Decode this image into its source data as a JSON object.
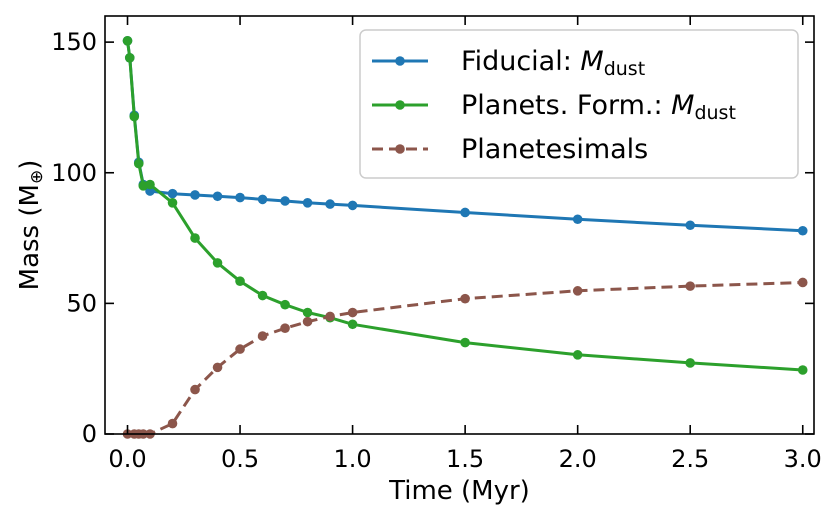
{
  "chart_data": {
    "type": "line",
    "xlabel": "Time (Myr)",
    "ylabel": "Mass (M",
    "ylabel_symbol": "⊕",
    "ylabel_close": ")",
    "xlim": [
      -0.1,
      3.05
    ],
    "ylim": [
      0,
      160
    ],
    "xticks": [
      0.0,
      0.5,
      1.0,
      1.5,
      2.0,
      2.5,
      3.0
    ],
    "xtick_labels": [
      "0.0",
      "0.5",
      "1.0",
      "1.5",
      "2.0",
      "2.5",
      "3.0"
    ],
    "yticks": [
      0,
      50,
      100,
      150
    ],
    "ytick_labels": [
      "0",
      "50",
      "100",
      "150"
    ],
    "grid": false,
    "legend_position": "top-right",
    "series": [
      {
        "name": "Fiducial: ",
        "name_math": "M",
        "name_sub": "dust",
        "color": "#1f77b4",
        "style": "solid",
        "x": [
          0.0,
          0.01,
          0.03,
          0.05,
          0.07,
          0.1,
          0.2,
          0.3,
          0.4,
          0.5,
          0.6,
          0.7,
          0.8,
          0.9,
          1.0,
          1.5,
          2.0,
          2.5,
          3.0
        ],
        "y": [
          150.5,
          144,
          122,
          104,
          95.5,
          93,
          92,
          91.5,
          91,
          90.5,
          89.8,
          89.2,
          88.5,
          88,
          87.5,
          84.8,
          82.2,
          79.9,
          77.8
        ]
      },
      {
        "name": "Planets. Form.: ",
        "name_math": "M",
        "name_sub": "dust",
        "color": "#2ca02c",
        "style": "solid",
        "x": [
          0.0,
          0.01,
          0.03,
          0.05,
          0.07,
          0.1,
          0.2,
          0.3,
          0.4,
          0.5,
          0.6,
          0.7,
          0.8,
          0.9,
          1.0,
          1.5,
          2.0,
          2.5,
          3.0
        ],
        "y": [
          150.5,
          144,
          121.5,
          103.5,
          95,
          95.5,
          88.5,
          75,
          65.5,
          58.5,
          53,
          49.5,
          46.5,
          44.5,
          42,
          35,
          30.3,
          27.2,
          24.5
        ]
      },
      {
        "name": "Planetesimals",
        "color": "#8c564b",
        "style": "dashed",
        "x": [
          0.0,
          0.03,
          0.05,
          0.07,
          0.1,
          0.2,
          0.3,
          0.4,
          0.5,
          0.6,
          0.7,
          0.8,
          0.9,
          1.0,
          1.5,
          2.0,
          2.5,
          3.0
        ],
        "y": [
          0,
          0,
          0,
          0,
          0,
          4,
          17,
          25.5,
          32.5,
          37.5,
          40.5,
          43,
          45,
          46.5,
          51.8,
          54.8,
          56.6,
          58
        ]
      }
    ]
  }
}
